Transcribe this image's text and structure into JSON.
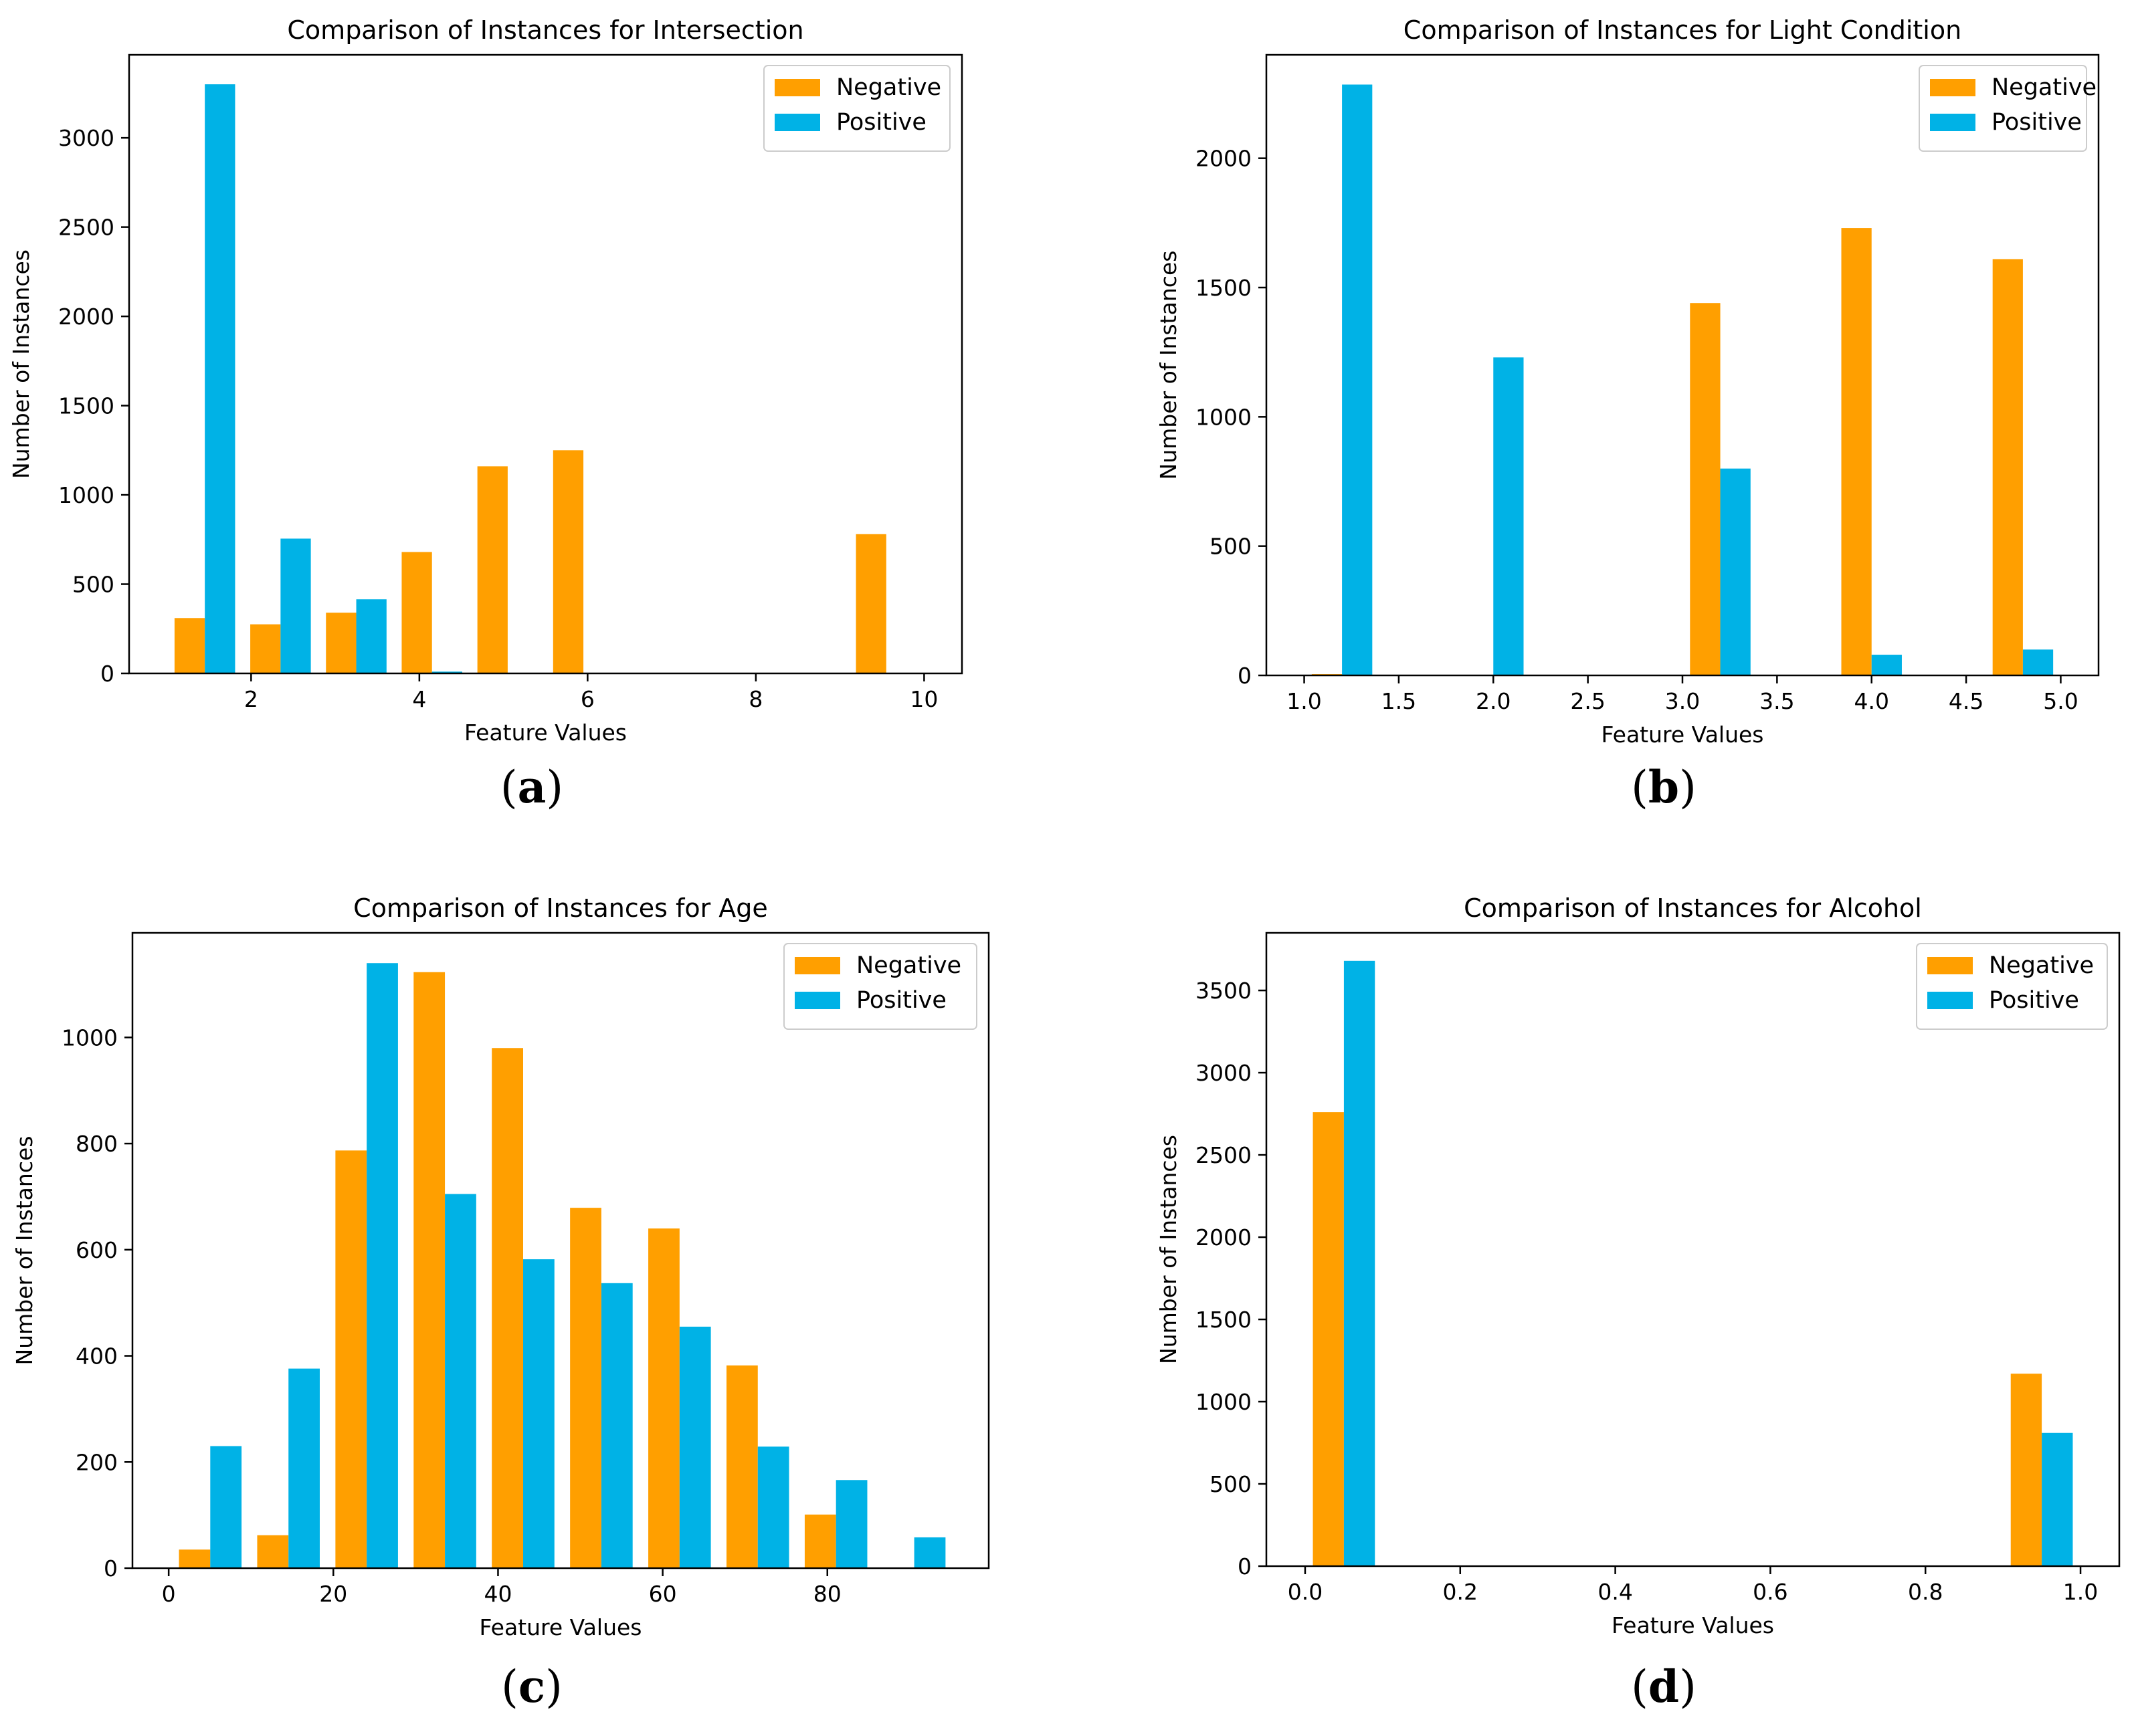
{
  "colors": {
    "negative": "#ff9f00",
    "positive": "#00b2e6"
  },
  "panel_labels": [
    "a",
    "b",
    "c",
    "d"
  ],
  "chart_data": [
    {
      "type": "bar",
      "title": "Comparison of Instances for Intersection",
      "xlabel": "Feature Values",
      "ylabel": "Number of Instances",
      "xlim": [
        0.55,
        10.45
      ],
      "ylim": [
        0,
        3465
      ],
      "xticks": [
        2,
        4,
        6,
        8,
        10
      ],
      "xtick_labels": [
        "2",
        "4",
        "6",
        "8",
        "10"
      ],
      "yticks": [
        0,
        500,
        1000,
        1500,
        2000,
        2500,
        3000
      ],
      "ytick_labels": [
        "0",
        "500",
        "1000",
        "1500",
        "2000",
        "2500",
        "3000"
      ],
      "legend": {
        "position": "top-right",
        "entries": [
          "Negative",
          "Positive"
        ]
      },
      "bin_width": 0.9,
      "bin_starts": [
        1,
        1.9,
        2.8,
        3.7,
        4.6,
        5.5,
        6.4,
        7.3,
        8.2,
        9.1
      ],
      "series": [
        {
          "name": "Negative",
          "values": [
            310,
            275,
            340,
            680,
            1160,
            1250,
            0,
            0,
            0,
            780
          ]
        },
        {
          "name": "Positive",
          "values": [
            3300,
            755,
            415,
            10,
            0,
            0,
            0,
            0,
            0,
            0
          ]
        }
      ]
    },
    {
      "type": "bar",
      "title": "Comparison of Instances for Light Condition",
      "xlabel": "Feature Values",
      "ylabel": "Number of Instances",
      "xlim": [
        0.8,
        5.2
      ],
      "ylim": [
        0,
        2400
      ],
      "xticks": [
        1.0,
        1.5,
        2.0,
        2.5,
        3.0,
        3.5,
        4.0,
        4.5,
        5.0
      ],
      "xtick_labels": [
        "1.0",
        "1.5",
        "2.0",
        "2.5",
        "3.0",
        "3.5",
        "4.0",
        "4.5",
        "5.0"
      ],
      "yticks": [
        0,
        500,
        1000,
        1500,
        2000
      ],
      "ytick_labels": [
        "0",
        "500",
        "1000",
        "1500",
        "2000"
      ],
      "legend": {
        "position": "top-right",
        "entries": [
          "Negative",
          "Positive"
        ]
      },
      "bin_width": 0.4,
      "bin_starts": [
        1.0,
        1.4,
        1.8,
        2.2,
        2.6,
        3.0,
        3.4,
        3.8,
        4.2,
        4.6
      ],
      "series": [
        {
          "name": "Negative",
          "values": [
            5,
            0,
            0,
            0,
            0,
            1440,
            0,
            1730,
            0,
            1610
          ]
        },
        {
          "name": "Positive",
          "values": [
            2285,
            0,
            1230,
            0,
            0,
            800,
            0,
            80,
            0,
            100
          ]
        }
      ]
    },
    {
      "type": "bar",
      "title": "Comparison of Instances for Age",
      "xlabel": "Feature Values",
      "ylabel": "Number of Instances",
      "xlim": [
        -4.4,
        99.6
      ],
      "ylim": [
        0,
        1197
      ],
      "xticks": [
        0,
        20,
        40,
        60,
        80
      ],
      "xtick_labels": [
        "0",
        "20",
        "40",
        "60",
        "80"
      ],
      "yticks": [
        0,
        200,
        400,
        600,
        800,
        1000
      ],
      "ytick_labels": [
        "0",
        "200",
        "400",
        "600",
        "800",
        "1000"
      ],
      "legend": {
        "position": "top-right",
        "entries": [
          "Negative",
          "Positive"
        ]
      },
      "bin_width": 9.5,
      "bin_starts": [
        0.3,
        9.8,
        19.3,
        28.8,
        38.3,
        47.8,
        57.3,
        66.8,
        76.3,
        85.8
      ],
      "series": [
        {
          "name": "Negative",
          "values": [
            35,
            62,
            787,
            1123,
            980,
            679,
            640,
            382,
            101,
            0
          ]
        },
        {
          "name": "Positive",
          "values": [
            230,
            376,
            1140,
            705,
            582,
            537,
            455,
            229,
            166,
            58
          ]
        }
      ]
    },
    {
      "type": "bar",
      "title": "Comparison of Instances for Alcohol",
      "xlabel": "Feature Values",
      "ylabel": "Number of Instances",
      "xlim": [
        -0.05,
        1.05
      ],
      "ylim": [
        0,
        3850
      ],
      "xticks": [
        0.0,
        0.2,
        0.4,
        0.6,
        0.8,
        1.0
      ],
      "xtick_labels": [
        "0.0",
        "0.2",
        "0.4",
        "0.6",
        "0.8",
        "1.0"
      ],
      "yticks": [
        0,
        500,
        1000,
        1500,
        2000,
        2500,
        3000,
        3500
      ],
      "ytick_labels": [
        "0",
        "500",
        "1000",
        "1500",
        "2000",
        "2500",
        "3000",
        "3500"
      ],
      "legend": {
        "position": "top-right",
        "entries": [
          "Negative",
          "Positive"
        ]
      },
      "bin_width": 0.1,
      "bin_starts": [
        0.0,
        0.1,
        0.2,
        0.3,
        0.4,
        0.5,
        0.6,
        0.7,
        0.8,
        0.9
      ],
      "series": [
        {
          "name": "Negative",
          "values": [
            2760,
            0,
            0,
            0,
            0,
            0,
            0,
            0,
            0,
            1170
          ]
        },
        {
          "name": "Positive",
          "values": [
            3680,
            0,
            0,
            0,
            0,
            0,
            0,
            0,
            0,
            810
          ]
        }
      ]
    }
  ]
}
